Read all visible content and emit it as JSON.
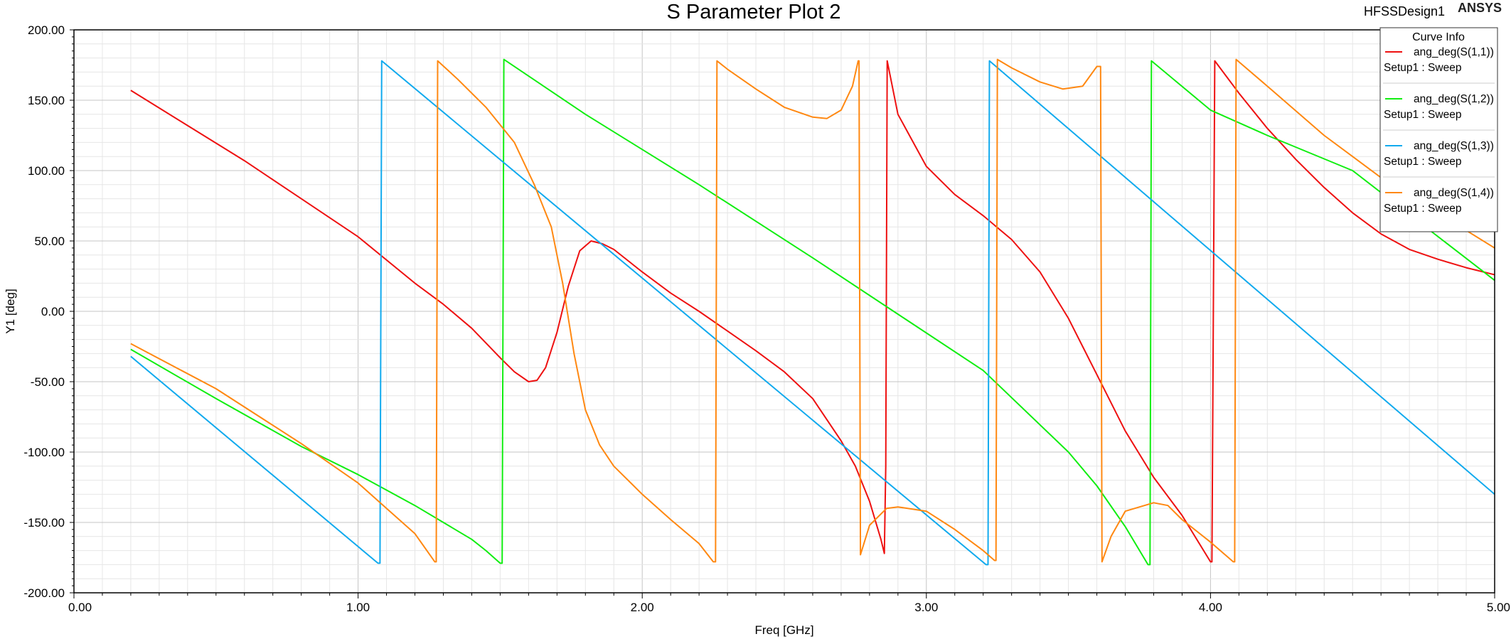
{
  "header": {
    "title": "S Parameter Plot 2",
    "design_name": "HFSSDesign1",
    "brand": "ANSYS"
  },
  "legend": {
    "title": "Curve Info",
    "placement": "top-right"
  },
  "chart_data": {
    "type": "line",
    "title": "S Parameter Plot 2",
    "xlabel": "Freq [GHz]",
    "ylabel": "Y1 [deg]",
    "xlim": [
      0,
      5
    ],
    "ylim": [
      -200,
      200
    ],
    "grid": true,
    "xticks": [
      0,
      1,
      2,
      3,
      4,
      5
    ],
    "xtick_labels": [
      "0.00",
      "1.00",
      "2.00",
      "3.00",
      "4.00",
      "5.00"
    ],
    "yticks": [
      200,
      150,
      100,
      50,
      0,
      -50,
      -100,
      -150,
      -200
    ],
    "ytick_labels": [
      "200.00",
      "150.00",
      "100.00",
      "50.00",
      "0.00",
      "-50.00",
      "-100.00",
      "-150.00",
      "-200.00"
    ],
    "series": [
      {
        "name": "ang_deg(S(1,1))",
        "setup": "Setup1 : Sweep",
        "color": "#ee1111",
        "points": [
          [
            0.2,
            157
          ],
          [
            0.4,
            132
          ],
          [
            0.6,
            107
          ],
          [
            0.8,
            80
          ],
          [
            1.0,
            53
          ],
          [
            1.2,
            20
          ],
          [
            1.3,
            5
          ],
          [
            1.4,
            -12
          ],
          [
            1.5,
            -33
          ],
          [
            1.55,
            -43
          ],
          [
            1.6,
            -50
          ],
          [
            1.63,
            -49
          ],
          [
            1.66,
            -40
          ],
          [
            1.7,
            -15
          ],
          [
            1.74,
            18
          ],
          [
            1.78,
            43
          ],
          [
            1.82,
            50
          ],
          [
            1.86,
            48
          ],
          [
            1.9,
            44
          ],
          [
            2.0,
            28
          ],
          [
            2.1,
            13
          ],
          [
            2.2,
            0
          ],
          [
            2.3,
            -14
          ],
          [
            2.4,
            -28
          ],
          [
            2.5,
            -43
          ],
          [
            2.6,
            -62
          ],
          [
            2.7,
            -92
          ],
          [
            2.75,
            -110
          ],
          [
            2.8,
            -135
          ],
          [
            2.84,
            -162
          ],
          [
            2.852,
            -172
          ],
          [
            2.857,
            -110
          ],
          [
            2.862,
            178
          ],
          [
            2.9,
            140
          ],
          [
            3.0,
            103
          ],
          [
            3.1,
            83
          ],
          [
            3.2,
            68
          ],
          [
            3.3,
            51
          ],
          [
            3.4,
            28
          ],
          [
            3.5,
            -5
          ],
          [
            3.6,
            -45
          ],
          [
            3.7,
            -85
          ],
          [
            3.8,
            -118
          ],
          [
            3.9,
            -145
          ],
          [
            4.0,
            -178
          ],
          [
            4.005,
            -178
          ],
          [
            4.015,
            178
          ],
          [
            4.1,
            155
          ],
          [
            4.2,
            130
          ],
          [
            4.3,
            108
          ],
          [
            4.4,
            88
          ],
          [
            4.5,
            70
          ],
          [
            4.6,
            55
          ],
          [
            4.7,
            44
          ],
          [
            4.8,
            37
          ],
          [
            4.9,
            31
          ],
          [
            5.0,
            26
          ]
        ]
      },
      {
        "name": "ang_deg(S(1,2))",
        "setup": "Setup1 : Sweep",
        "color": "#11ee11",
        "points": [
          [
            0.2,
            -27
          ],
          [
            0.5,
            -62
          ],
          [
            0.8,
            -96
          ],
          [
            1.0,
            -116
          ],
          [
            1.1,
            -127
          ],
          [
            1.2,
            -138
          ],
          [
            1.3,
            -150
          ],
          [
            1.4,
            -162
          ],
          [
            1.45,
            -170
          ],
          [
            1.5,
            -179
          ],
          [
            1.507,
            -179
          ],
          [
            1.513,
            179
          ],
          [
            1.8,
            140
          ],
          [
            2.2,
            90
          ],
          [
            2.6,
            38
          ],
          [
            2.9,
            -2
          ],
          [
            3.2,
            -42
          ],
          [
            3.5,
            -100
          ],
          [
            3.6,
            -124
          ],
          [
            3.7,
            -153
          ],
          [
            3.78,
            -180
          ],
          [
            3.787,
            -180
          ],
          [
            3.792,
            178
          ],
          [
            4.0,
            143
          ],
          [
            4.2,
            125
          ],
          [
            4.5,
            100
          ],
          [
            5.0,
            22
          ]
        ]
      },
      {
        "name": "ang_deg(S(1,3))",
        "setup": "Setup1 : Sweep",
        "color": "#11aaee",
        "points": [
          [
            0.2,
            -32
          ],
          [
            1.07,
            -179
          ],
          [
            1.077,
            -179
          ],
          [
            1.083,
            178
          ],
          [
            3.21,
            -180
          ],
          [
            3.217,
            -180
          ],
          [
            3.222,
            178
          ],
          [
            5.0,
            -130
          ]
        ]
      },
      {
        "name": "ang_deg(S(1,4))",
        "setup": "Setup1 : Sweep",
        "color": "#ff8811",
        "points": [
          [
            0.2,
            -23
          ],
          [
            0.5,
            -55
          ],
          [
            0.8,
            -94
          ],
          [
            1.0,
            -122
          ],
          [
            1.1,
            -140
          ],
          [
            1.2,
            -158
          ],
          [
            1.27,
            -178
          ],
          [
            1.275,
            -178
          ],
          [
            1.28,
            178
          ],
          [
            1.35,
            165
          ],
          [
            1.45,
            145
          ],
          [
            1.55,
            120
          ],
          [
            1.62,
            90
          ],
          [
            1.68,
            60
          ],
          [
            1.72,
            20
          ],
          [
            1.76,
            -30
          ],
          [
            1.8,
            -70
          ],
          [
            1.85,
            -95
          ],
          [
            1.9,
            -110
          ],
          [
            2.0,
            -130
          ],
          [
            2.1,
            -148
          ],
          [
            2.2,
            -165
          ],
          [
            2.25,
            -178
          ],
          [
            2.258,
            -178
          ],
          [
            2.263,
            178
          ],
          [
            2.3,
            172
          ],
          [
            2.4,
            158
          ],
          [
            2.5,
            145
          ],
          [
            2.6,
            138
          ],
          [
            2.65,
            137
          ],
          [
            2.7,
            143
          ],
          [
            2.74,
            160
          ],
          [
            2.76,
            178
          ],
          [
            2.763,
            178
          ],
          [
            2.768,
            -173
          ],
          [
            2.8,
            -152
          ],
          [
            2.86,
            -140
          ],
          [
            2.9,
            -139
          ],
          [
            3.0,
            -142
          ],
          [
            3.1,
            -155
          ],
          [
            3.2,
            -170
          ],
          [
            3.24,
            -177
          ],
          [
            3.245,
            -177
          ],
          [
            3.25,
            179
          ],
          [
            3.3,
            173
          ],
          [
            3.4,
            163
          ],
          [
            3.48,
            158
          ],
          [
            3.55,
            160
          ],
          [
            3.6,
            174
          ],
          [
            3.613,
            174
          ],
          [
            3.618,
            -178
          ],
          [
            3.65,
            -160
          ],
          [
            3.7,
            -142
          ],
          [
            3.8,
            -136
          ],
          [
            3.85,
            -138
          ],
          [
            3.9,
            -148
          ],
          [
            4.0,
            -164
          ],
          [
            4.08,
            -178
          ],
          [
            4.085,
            -178
          ],
          [
            4.09,
            179
          ],
          [
            4.2,
            160
          ],
          [
            4.4,
            125
          ],
          [
            4.6,
            95
          ],
          [
            4.8,
            70
          ],
          [
            5.0,
            45
          ]
        ]
      }
    ]
  }
}
